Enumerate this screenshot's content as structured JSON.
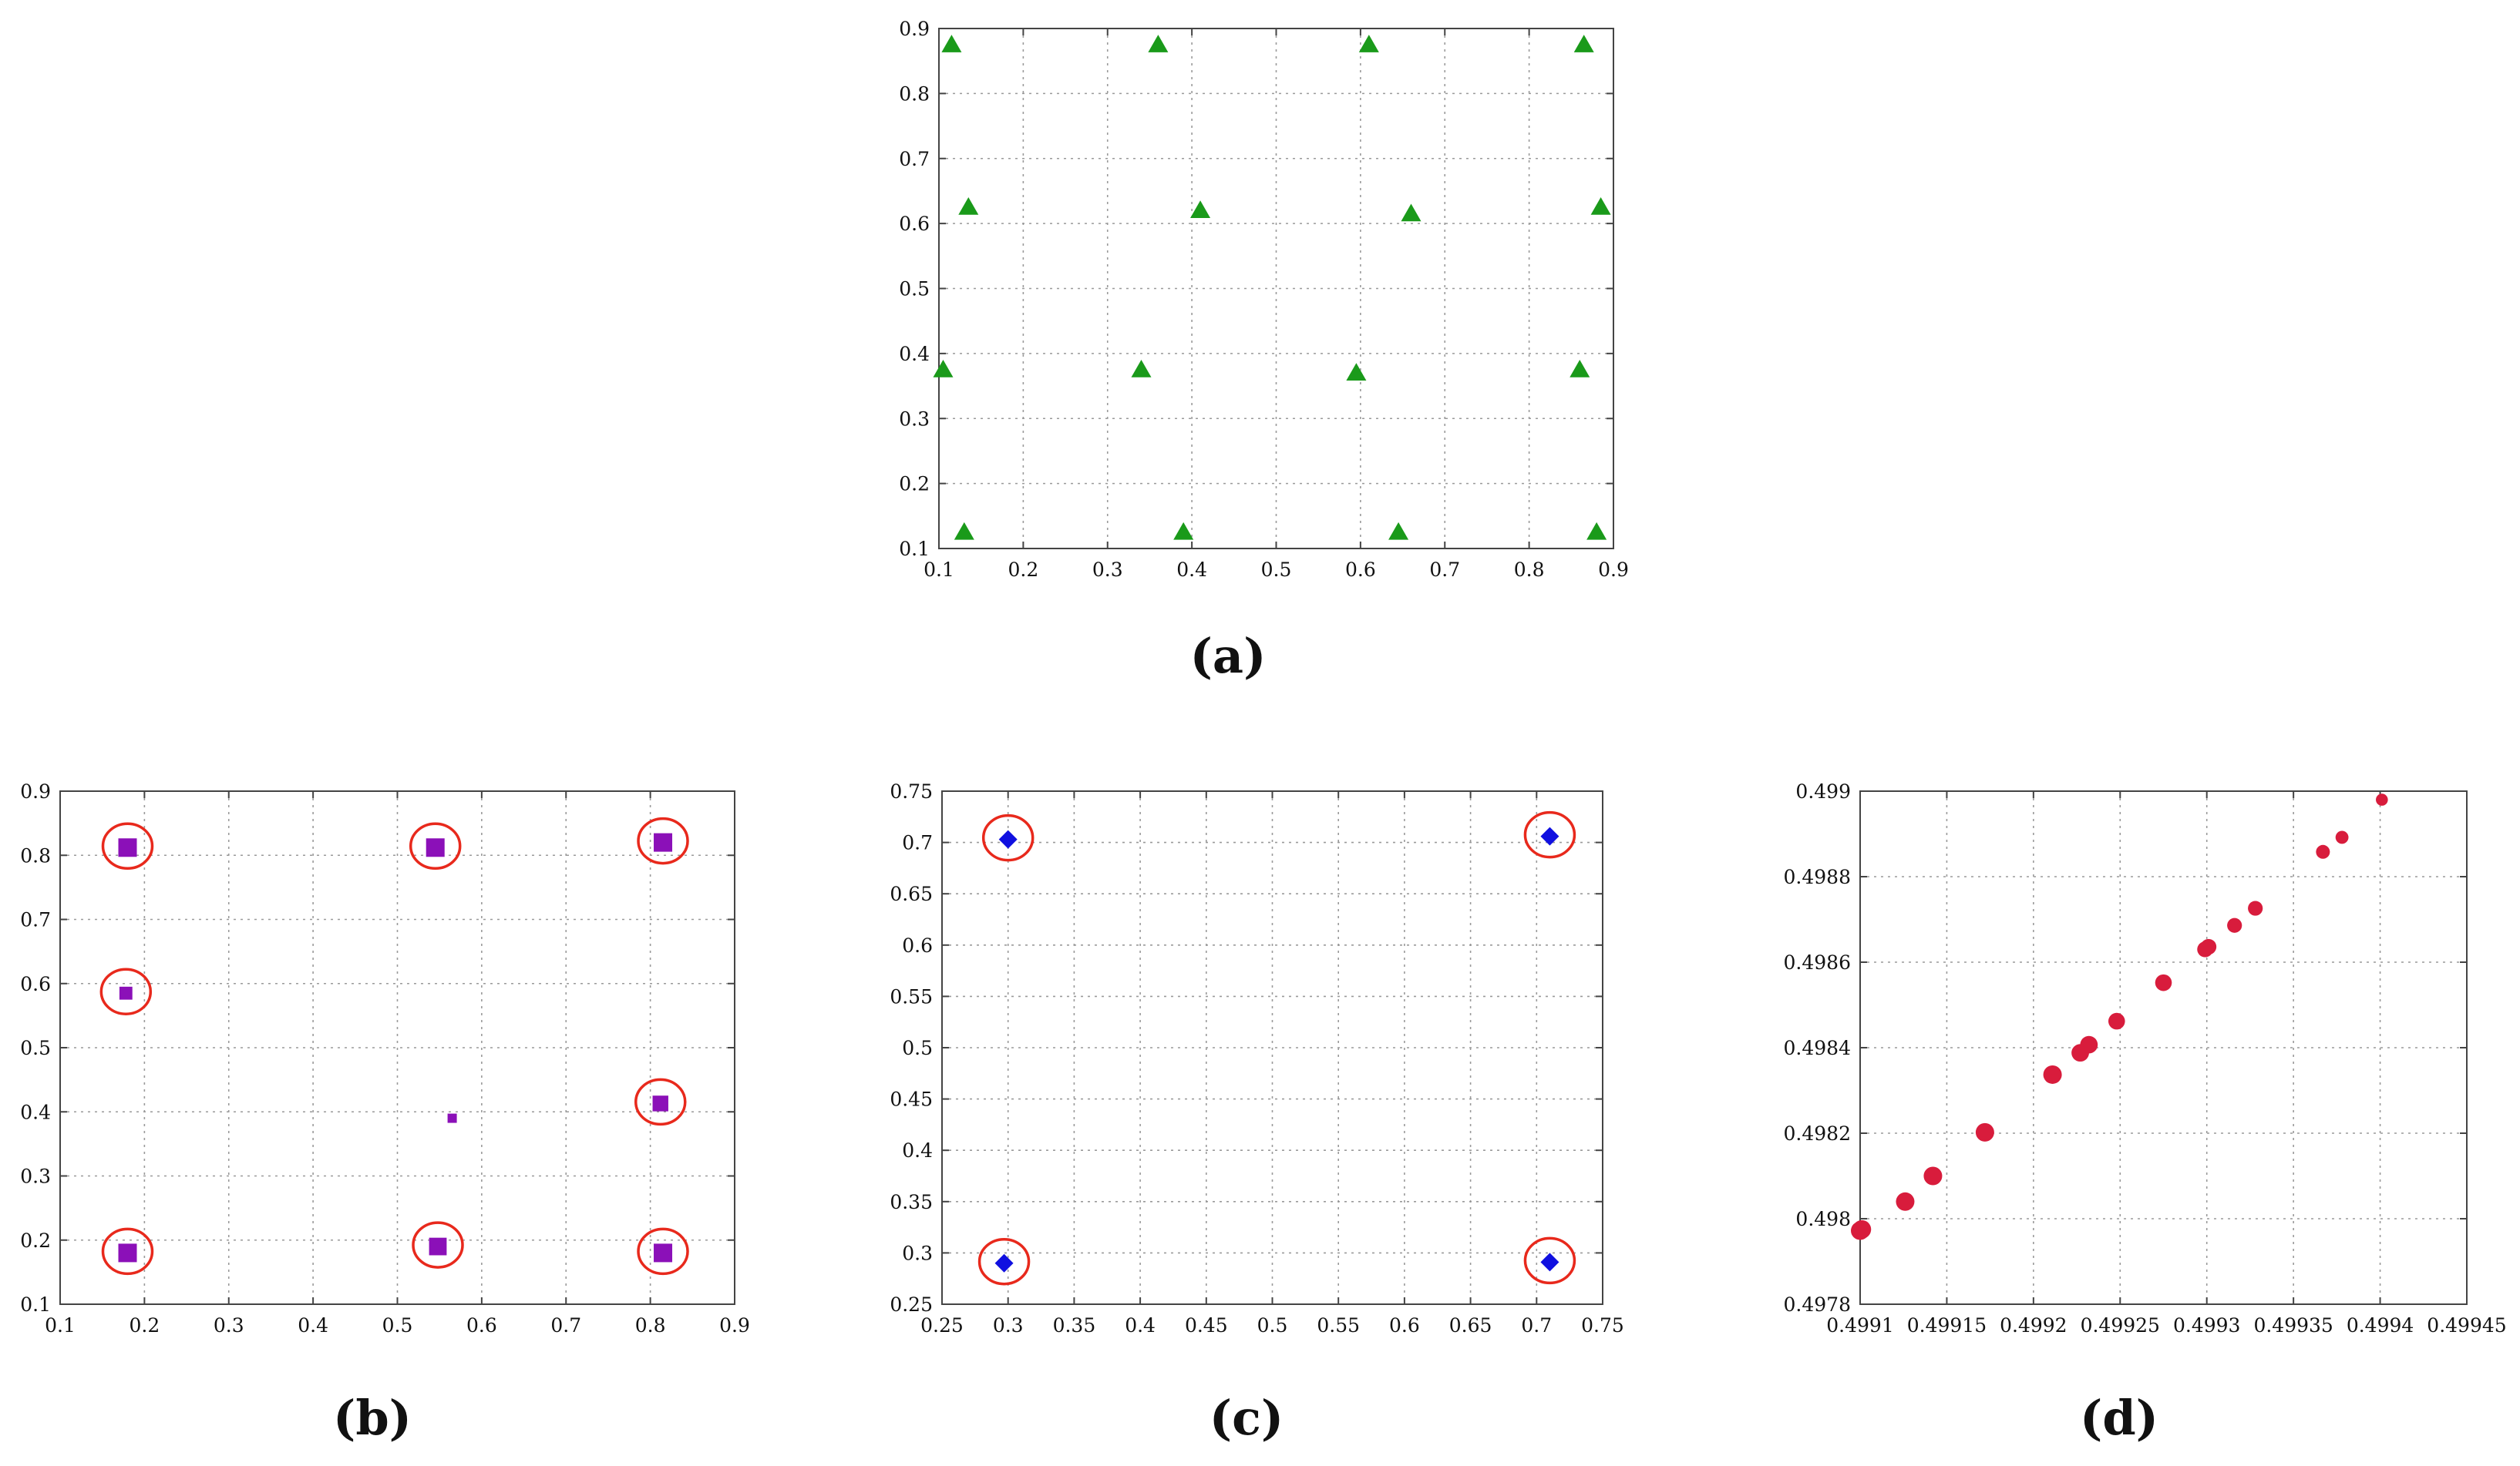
{
  "chart_data": [
    {
      "panel": "(a)",
      "type": "scatter",
      "marker": "triangle",
      "color": "#1a9a1a",
      "xlim": [
        0.1,
        0.9
      ],
      "ylim": [
        0.1,
        0.9
      ],
      "xticks": [
        "0.1",
        "0.2",
        "0.3",
        "0.4",
        "0.5",
        "0.6",
        "0.7",
        "0.8",
        "0.9"
      ],
      "yticks": [
        "0.1",
        "0.2",
        "0.3",
        "0.4",
        "0.5",
        "0.6",
        "0.7",
        "0.8",
        "0.9"
      ],
      "grid": true,
      "x": [
        0.115,
        0.36,
        0.61,
        0.865,
        0.135,
        0.41,
        0.66,
        0.885,
        0.105,
        0.34,
        0.595,
        0.86,
        0.13,
        0.39,
        0.645,
        0.88
      ],
      "y": [
        0.875,
        0.875,
        0.875,
        0.875,
        0.625,
        0.62,
        0.615,
        0.625,
        0.375,
        0.375,
        0.37,
        0.375,
        0.125,
        0.125,
        0.125,
        0.125
      ]
    },
    {
      "panel": "(b)",
      "type": "scatter",
      "marker": "square",
      "color": "#8b10b8",
      "circle_color": "#e8291c",
      "xlim": [
        0.1,
        0.9
      ],
      "ylim": [
        0.1,
        0.9
      ],
      "xticks": [
        "0.1",
        "0.2",
        "0.3",
        "0.4",
        "0.5",
        "0.6",
        "0.7",
        "0.8",
        "0.9"
      ],
      "yticks": [
        "0.1",
        "0.2",
        "0.3",
        "0.4",
        "0.5",
        "0.6",
        "0.7",
        "0.8",
        "0.9"
      ],
      "grid": true,
      "x": [
        0.18,
        0.545,
        0.815,
        0.178,
        0.812,
        0.565,
        0.18,
        0.548,
        0.815
      ],
      "y": [
        0.812,
        0.812,
        0.82,
        0.585,
        0.413,
        0.39,
        0.18,
        0.19,
        0.18
      ],
      "marker_size": [
        1.0,
        1.0,
        1.0,
        0.7,
        0.85,
        0.5,
        1.0,
        0.95,
        1.0
      ],
      "circled": [
        true,
        true,
        true,
        true,
        true,
        false,
        true,
        true,
        true
      ]
    },
    {
      "panel": "(c)",
      "type": "scatter",
      "marker": "diamond",
      "color": "#1010e0",
      "circle_color": "#e8291c",
      "xlim": [
        0.25,
        0.75
      ],
      "ylim": [
        0.25,
        0.75
      ],
      "xticks": [
        "0.25",
        "0.3",
        "0.35",
        "0.4",
        "0.45",
        "0.5",
        "0.55",
        "0.6",
        "0.65",
        "0.7",
        "0.75"
      ],
      "yticks": [
        "0.25",
        "0.3",
        "0.35",
        "0.4",
        "0.45",
        "0.5",
        "0.55",
        "0.6",
        "0.65",
        "0.7",
        "0.75"
      ],
      "grid": true,
      "x": [
        0.3,
        0.71,
        0.297,
        0.71
      ],
      "y": [
        0.703,
        0.706,
        0.29,
        0.291
      ],
      "circled": [
        true,
        true,
        true,
        true
      ]
    },
    {
      "panel": "(d)",
      "type": "scatter",
      "marker": "circle",
      "color": "#d81c3c",
      "xlim": [
        0.4991,
        0.49945
      ],
      "ylim": [
        0.4978,
        0.499
      ],
      "xticks": [
        "0.4991",
        "0.49915",
        "0.4992",
        "0.49925",
        "0.4993",
        "0.49935",
        "0.4994",
        "0.49945"
      ],
      "yticks": [
        "0.4978",
        "0.498",
        "0.4982",
        "0.4984",
        "0.4986",
        "0.4988",
        "0.499"
      ],
      "grid": true,
      "x": [
        0.4991,
        0.499101,
        0.499126,
        0.499142,
        0.499172,
        0.499211,
        0.499227,
        0.499232,
        0.499248,
        0.499275,
        0.499299,
        0.499301,
        0.499316,
        0.499328,
        0.499367,
        0.499378,
        0.499401
      ],
      "y": [
        0.497972,
        0.497975,
        0.49804,
        0.4981,
        0.498202,
        0.498337,
        0.498388,
        0.498407,
        0.498462,
        0.498552,
        0.49863,
        0.498636,
        0.498686,
        0.498726,
        0.498858,
        0.498892,
        0.49898
      ],
      "marker_size": [
        1.0,
        1.0,
        1.0,
        1.0,
        1.0,
        1.0,
        0.95,
        0.95,
        0.9,
        0.9,
        0.85,
        0.85,
        0.8,
        0.8,
        0.75,
        0.7,
        0.65
      ]
    }
  ]
}
